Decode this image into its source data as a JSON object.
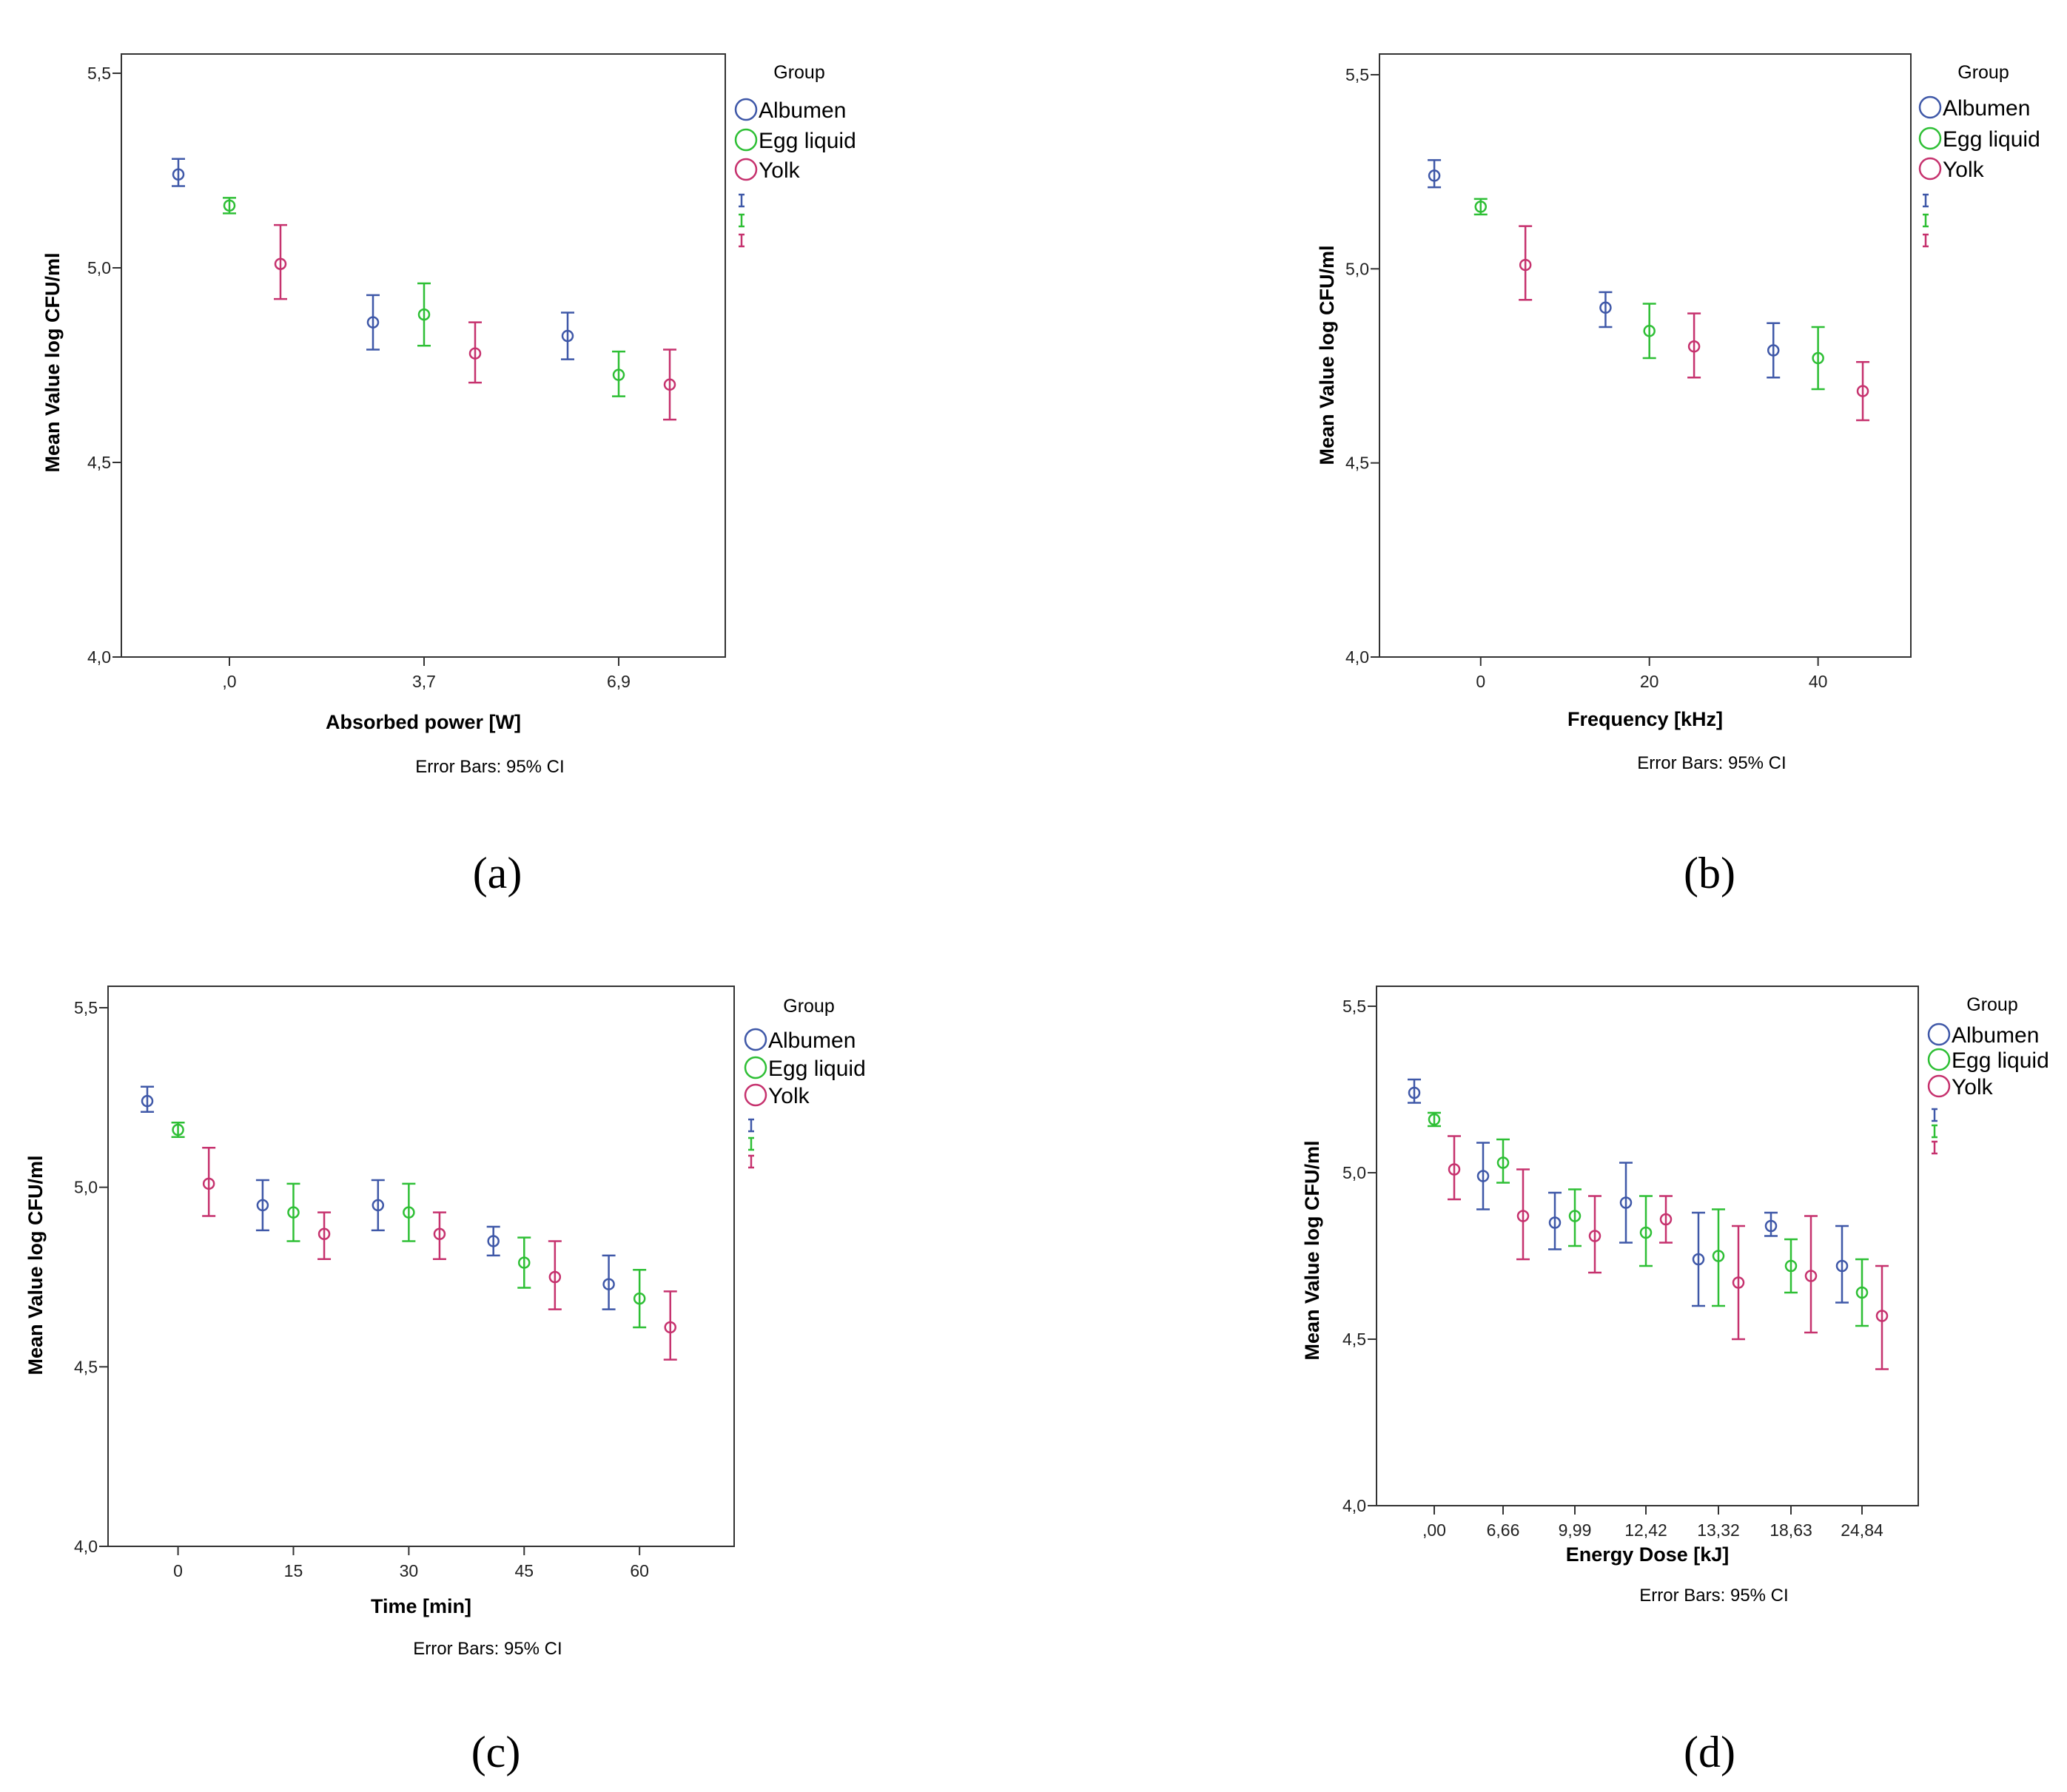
{
  "colors": {
    "Albumen": "#3f58a8",
    "Egg liquid": "#2ebf35",
    "Yolk": "#c6326e"
  },
  "chart_data": [
    {
      "type": "scatter",
      "panel_label": "(a)",
      "xlabel": "Absorbed power [W]",
      "ylabel": "Mean Value log CFU/ml",
      "note": "Error Bars: 95% CI",
      "legend_title": "Group",
      "legend_position": "right",
      "ylim": [
        4.0,
        5.5
      ],
      "yticks": [
        "4,0",
        "4,5",
        "5,0",
        "5,5"
      ],
      "categories": [
        ",0",
        "3,7",
        "6,9"
      ],
      "series": [
        {
          "name": "Albumen",
          "values": [
            5.24,
            4.86,
            4.825
          ],
          "ci_low": [
            5.21,
            4.79,
            4.765
          ],
          "ci_high": [
            5.28,
            4.93,
            4.885
          ]
        },
        {
          "name": "Egg liquid",
          "values": [
            5.16,
            4.88,
            4.725
          ],
          "ci_low": [
            5.14,
            4.8,
            4.67
          ],
          "ci_high": [
            5.18,
            4.96,
            4.785
          ]
        },
        {
          "name": "Yolk",
          "values": [
            5.01,
            4.78,
            4.7
          ],
          "ci_low": [
            4.92,
            4.705,
            4.61
          ],
          "ci_high": [
            5.11,
            4.86,
            4.79
          ]
        }
      ]
    },
    {
      "type": "scatter",
      "panel_label": "(b)",
      "xlabel": "Frequency [kHz]",
      "ylabel": "Mean Value log CFU/ml",
      "note": "Error Bars: 95% CI",
      "legend_title": "Group",
      "legend_position": "right",
      "ylim": [
        4.0,
        5.5
      ],
      "yticks": [
        "4,0",
        "4,5",
        "5,0",
        "5,5"
      ],
      "xlim": [
        -12,
        51
      ],
      "xticks": [
        0,
        20,
        40
      ],
      "xtick_labels": [
        "0",
        "20",
        "40"
      ],
      "series": [
        {
          "name": "Albumen",
          "x": [
            -5.5,
            14.8,
            34.7
          ],
          "values": [
            5.24,
            4.9,
            4.79
          ],
          "ci_low": [
            5.21,
            4.85,
            4.72
          ],
          "ci_high": [
            5.28,
            4.94,
            4.86
          ]
        },
        {
          "name": "Egg liquid",
          "x": [
            0,
            20,
            40
          ],
          "values": [
            5.16,
            4.84,
            4.77
          ],
          "ci_low": [
            5.14,
            4.77,
            4.69
          ],
          "ci_high": [
            5.18,
            4.91,
            4.85
          ]
        },
        {
          "name": "Yolk",
          "x": [
            5.3,
            25.3,
            45.3
          ],
          "values": [
            5.01,
            4.8,
            4.685
          ],
          "ci_low": [
            4.92,
            4.72,
            4.61
          ],
          "ci_high": [
            5.11,
            4.885,
            4.76
          ]
        }
      ]
    },
    {
      "type": "scatter",
      "panel_label": "(c)",
      "xlabel": "Time [min]",
      "ylabel": "Mean Value log CFU/ml",
      "note": "Error Bars: 95% CI",
      "legend_title": "Group",
      "legend_position": "right",
      "ylim": [
        4.0,
        5.5
      ],
      "yticks": [
        "4,0",
        "4,5",
        "5,0",
        "5,5"
      ],
      "xlim": [
        -9.1,
        72.3
      ],
      "xticks": [
        0,
        15,
        30,
        45,
        60
      ],
      "xtick_labels": [
        "0",
        "15",
        "30",
        "45",
        "60"
      ],
      "series": [
        {
          "name": "Albumen",
          "x": [
            -4.0,
            11.0,
            26.0,
            41.0,
            56.0
          ],
          "values": [
            5.24,
            4.95,
            4.95,
            4.85,
            4.73
          ],
          "ci_low": [
            5.21,
            4.88,
            4.88,
            4.81,
            4.66
          ],
          "ci_high": [
            5.28,
            5.02,
            5.02,
            4.89,
            4.81
          ]
        },
        {
          "name": "Egg liquid",
          "x": [
            0,
            15,
            30,
            45,
            60
          ],
          "values": [
            5.16,
            4.93,
            4.93,
            4.79,
            4.69
          ],
          "ci_low": [
            5.14,
            4.85,
            4.85,
            4.72,
            4.61
          ],
          "ci_high": [
            5.18,
            5.01,
            5.01,
            4.86,
            4.77
          ]
        },
        {
          "name": "Yolk",
          "x": [
            4.0,
            19.0,
            34.0,
            49.0,
            64.0
          ],
          "values": [
            5.01,
            4.87,
            4.87,
            4.75,
            4.61
          ],
          "ci_low": [
            4.92,
            4.8,
            4.8,
            4.66,
            4.52
          ],
          "ci_high": [
            5.11,
            4.93,
            4.93,
            4.85,
            4.71
          ]
        }
      ]
    },
    {
      "type": "scatter",
      "panel_label": "(d)",
      "xlabel": "Energy Dose [kJ]",
      "ylabel": "Mean Value log CFU/ml",
      "note": "Error Bars: 95% CI",
      "legend_title": "Group",
      "legend_position": "right",
      "ylim": [
        4.0,
        5.5
      ],
      "yticks": [
        "4,0",
        "4,5",
        "5,0",
        "5,5"
      ],
      "categories": [
        ",00",
        "6,66",
        "9,99",
        "12,42",
        "13,32",
        "18,63",
        "24,84"
      ],
      "series": [
        {
          "name": "Albumen",
          "values": [
            5.24,
            4.99,
            4.85,
            4.91,
            4.74,
            4.84,
            4.72
          ],
          "ci_low": [
            5.21,
            4.89,
            4.77,
            4.79,
            4.6,
            4.81,
            4.61
          ],
          "ci_high": [
            5.28,
            5.09,
            4.94,
            5.03,
            4.88,
            4.88,
            4.84
          ]
        },
        {
          "name": "Egg liquid",
          "values": [
            5.16,
            5.03,
            4.87,
            4.82,
            4.75,
            4.72,
            4.64
          ],
          "ci_low": [
            5.14,
            4.97,
            4.78,
            4.72,
            4.6,
            4.64,
            4.54
          ],
          "ci_high": [
            5.18,
            5.1,
            4.95,
            4.93,
            4.89,
            4.8,
            4.74
          ]
        },
        {
          "name": "Yolk",
          "values": [
            5.01,
            4.87,
            4.81,
            4.86,
            4.67,
            4.69,
            4.57
          ],
          "ci_low": [
            4.92,
            4.74,
            4.7,
            4.79,
            4.5,
            4.52,
            4.41
          ],
          "ci_high": [
            5.11,
            5.01,
            4.93,
            4.93,
            4.84,
            4.87,
            4.72
          ]
        }
      ]
    }
  ]
}
